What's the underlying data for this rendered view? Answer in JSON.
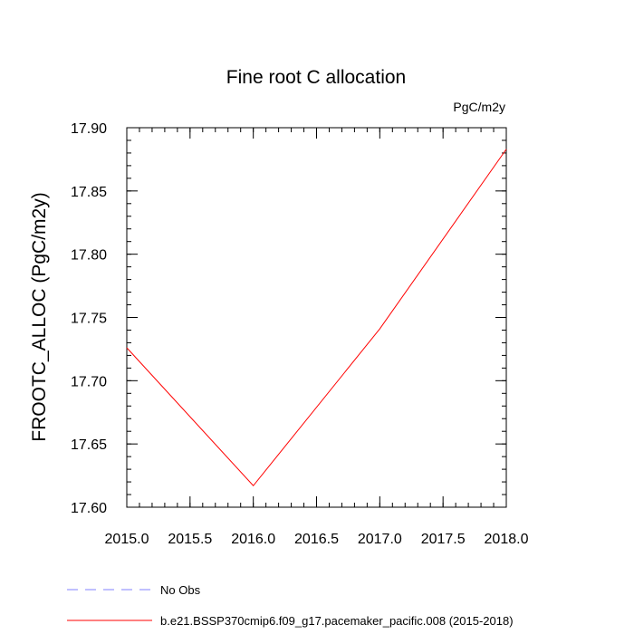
{
  "chart_data": {
    "type": "line",
    "title": "Fine root C allocation",
    "units": "PgC/m2y",
    "xlabel": "",
    "ylabel": "FROOTC_ALLOC  (PgC/m2y)",
    "xlim": [
      2015.0,
      2018.0
    ],
    "ylim": [
      17.6,
      17.9
    ],
    "x_ticks": [
      "2015.0",
      "2015.5",
      "2016.0",
      "2016.5",
      "2017.0",
      "2017.5",
      "2018.0"
    ],
    "y_ticks": [
      "17.60",
      "17.65",
      "17.70",
      "17.75",
      "17.80",
      "17.85",
      "17.90"
    ],
    "series": [
      {
        "name": "b.e21.BSSP370cmip6.f09_g17.pacemaker_pacific.008 (2015-2018)",
        "color": "#ff0000",
        "x": [
          2015,
          2016,
          2017,
          2018
        ],
        "y": [
          17.726,
          17.617,
          17.741,
          17.883
        ]
      }
    ],
    "legend": [
      {
        "label": "No Obs",
        "color": "#8080ff",
        "style": "dashed"
      },
      {
        "label": "b.e21.BSSP370cmip6.f09_g17.pacemaker_pacific.008 (2015-2018)",
        "color": "#ff0000",
        "style": "solid"
      }
    ],
    "legend_position": "bottom-left",
    "grid": false
  }
}
